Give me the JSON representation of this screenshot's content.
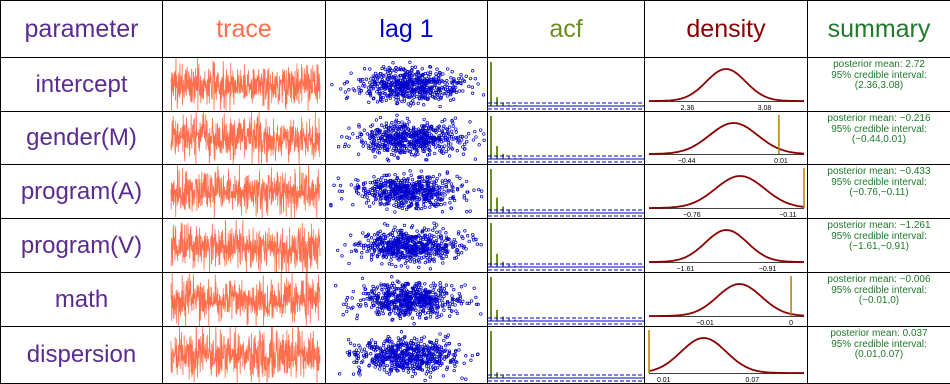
{
  "colors": {
    "parameter": "#5b2c8f",
    "trace": "#ff6f4d",
    "lag": "#0000cc",
    "acf": "#6b8e23",
    "density": "#8b0000",
    "summary": "#1f7a2a",
    "ci_line": "#b8860b"
  },
  "headers": {
    "parameter": "parameter",
    "trace": "trace",
    "lag": "lag 1",
    "acf": "acf",
    "density": "density",
    "summary": "summary"
  },
  "summary_labels": {
    "mean_prefix": "posterior mean: ",
    "ci_label": "95% credible interval:"
  },
  "chart_data": {
    "type": "table",
    "title": "",
    "rows": [
      {
        "parameter": "intercept",
        "mean": 2.72,
        "mean_text": "2.72",
        "ci": [
          2.36,
          3.08
        ],
        "ci_text": "(2.36,3.08)",
        "ci_labels": [
          "2.36",
          "3.08"
        ],
        "density_range": [
          2.0,
          3.45
        ],
        "acf": [
          1.0,
          0.2,
          0.08,
          0.03,
          0.02,
          0.01,
          0.01,
          0.0
        ],
        "zero_label": "",
        "zero_in_range": false
      },
      {
        "parameter": "gender(M)",
        "mean": -0.216,
        "mean_text": "−0.216",
        "ci": [
          -0.44,
          0.01
        ],
        "ci_text": "(−0.44,0.01)",
        "ci_labels": [
          "−0.44",
          "0.01"
        ],
        "density_range": [
          -0.62,
          0.12
        ],
        "acf": [
          1.0,
          0.3,
          0.12,
          0.05,
          0.03,
          0.02,
          0.01,
          0.0
        ],
        "zero_label": "",
        "zero_in_range": true
      },
      {
        "parameter": "program(A)",
        "mean": -0.433,
        "mean_text": "−0.433",
        "ci": [
          -0.76,
          -0.11
        ],
        "ci_text": "(−0.76,−0.11)",
        "ci_labels": [
          "−0.76",
          "−0.11"
        ],
        "density_range": [
          -1.05,
          0.0
        ],
        "acf": [
          1.0,
          0.35,
          0.15,
          0.07,
          0.03,
          0.02,
          0.01,
          0.0
        ],
        "zero_label": "",
        "zero_in_range": true
      },
      {
        "parameter": "program(V)",
        "mean": -1.261,
        "mean_text": "−1.261",
        "ci": [
          -1.61,
          -0.91
        ],
        "ci_text": "(−1.61,−0.91)",
        "ci_labels": [
          "−1.61",
          "−0.91"
        ],
        "density_range": [
          -1.92,
          -0.6
        ],
        "acf": [
          1.0,
          0.3,
          0.12,
          0.05,
          0.03,
          0.02,
          0.01,
          0.0
        ],
        "zero_label": "",
        "zero_in_range": false
      },
      {
        "parameter": "math",
        "mean": -0.006,
        "mean_text": "−0.006",
        "ci": [
          -0.01,
          0.0
        ],
        "ci_text": "(−0.01,0)",
        "ci_labels": [
          "−0.01",
          ""
        ],
        "density_range": [
          -0.0165,
          0.0015
        ],
        "acf": [
          1.0,
          0.25,
          0.1,
          0.05,
          0.03,
          0.02,
          0.01,
          0.0
        ],
        "zero_label": "0",
        "zero_in_range": true
      },
      {
        "parameter": "dispersion",
        "mean": 0.037,
        "mean_text": "0.037",
        "ci": [
          0.01,
          0.07
        ],
        "ci_text": "(0.01,0.07)",
        "ci_labels": [
          "0.01",
          "0.07"
        ],
        "density_range": [
          0.0,
          0.105
        ],
        "acf": [
          1.0,
          0.12,
          0.05,
          0.02,
          0.01,
          0.01,
          0.0,
          0.0
        ],
        "zero_label": "",
        "zero_in_range": true
      }
    ]
  }
}
